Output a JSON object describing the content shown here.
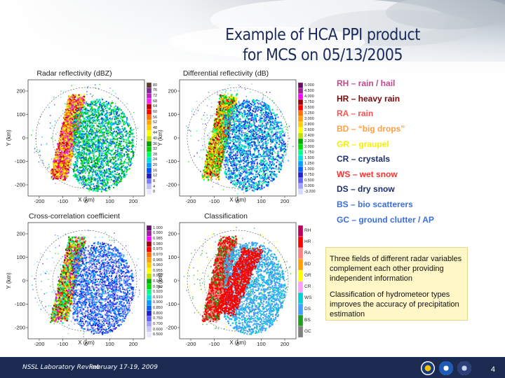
{
  "slide": {
    "title_line1": "Example of HCA PPI product",
    "title_line2": "for MCS on 05/13/2005"
  },
  "panels": [
    {
      "title": "Radar reflectivity (dBZ)",
      "scale": [
        "80",
        "76",
        "72",
        "68",
        "64",
        "60",
        "56",
        "52",
        "48",
        "44",
        "40",
        "36",
        "32",
        "28",
        "24",
        "20",
        "16",
        "12",
        "8",
        "4",
        "0"
      ],
      "colors": [
        "#5a3a2a",
        "#7a2a9a",
        "#c020c0",
        "#ff20ff",
        "#c00000",
        "#ff0000",
        "#ff7000",
        "#ffa500",
        "#ffd000",
        "#ffff00",
        "#c8e000",
        "#00a000",
        "#00d000",
        "#00ff60",
        "#00e0e0",
        "#00a0ff",
        "#0050ff",
        "#2020c0",
        "#7a7aff",
        "#c0c0ff",
        "#e8e8ff"
      ]
    },
    {
      "title": "Differential reflectivity (dB)",
      "scale": [
        "5.000",
        "4.500",
        "4.000",
        "3.750",
        "3.500",
        "3.250",
        "3.000",
        "2.800",
        "2.600",
        "2.400",
        "2.200",
        "2.000",
        "1.750",
        "1.500",
        "1.250",
        "1.000",
        "0.750",
        "0.500",
        "0.000",
        "-3.200"
      ],
      "colors": [
        "#6a0a6a",
        "#a020a0",
        "#ff00ff",
        "#a00000",
        "#ff0000",
        "#ff7000",
        "#ffa000",
        "#ffd000",
        "#ffff00",
        "#c0e000",
        "#00b000",
        "#00e000",
        "#00ff90",
        "#00e0e0",
        "#00a0ff",
        "#0060ff",
        "#2020d0",
        "#6060ff",
        "#a0a0ff",
        "#d8d8ff"
      ]
    },
    {
      "title": "Cross-correlation coefficient",
      "scale": [
        "1.000",
        "0.990",
        "0.985",
        "0.980",
        "0.975",
        "0.970",
        "0.965",
        "0.960",
        "0.955",
        "0.950",
        "0.940",
        "0.930",
        "0.920",
        "0.910",
        "0.900",
        "0.850",
        "0.800",
        "0.750",
        "0.700",
        "0.600",
        "0.500"
      ],
      "colors": [
        "#6a0a6a",
        "#a020a0",
        "#ff00ff",
        "#a00000",
        "#ff0000",
        "#ff7000",
        "#ffa000",
        "#ffd000",
        "#ffff00",
        "#c0e000",
        "#00b000",
        "#00e000",
        "#00ff90",
        "#00e0e0",
        "#00a0ff",
        "#0060ff",
        "#2020d0",
        "#6060ff",
        "#a0a0ff",
        "#c8c8ff",
        "#e8e8ff"
      ]
    },
    {
      "title": "Classification",
      "scale": [
        "RH",
        "HR",
        "RA",
        "BD",
        "GR",
        "CR",
        "WS",
        "DS",
        "BS",
        "GC"
      ],
      "colors": [
        "#c00060",
        "#ff0000",
        "#ff8080",
        "#ffa000",
        "#ffff00",
        "#ffa0ff",
        "#00d0d0",
        "#40a0ff",
        "#20a020",
        "#808080"
      ]
    }
  ],
  "axes": {
    "y_label": "Y (km)",
    "y_label_alt": "(km)",
    "x_label": "X (km)",
    "x_ticks": [
      "-200",
      "-100",
      "0",
      "100",
      "200"
    ],
    "y_ticks": [
      "200",
      "100",
      "0",
      "-100",
      "-200"
    ]
  },
  "legend": [
    {
      "code_text": "RH – rain / hail",
      "color": "#c04a8a"
    },
    {
      "code_text": "HR – heavy rain",
      "color": "#7a0a0a"
    },
    {
      "code_text": "RA – rain",
      "color": "#ff5050"
    },
    {
      "code_text": "BD – “big drops”",
      "color": "#ff9e40"
    },
    {
      "code_text": "GR – graupel",
      "color": "#f2f200"
    },
    {
      "code_text": "CR – crystals",
      "color": "#1c2f6e"
    },
    {
      "code_text": "WS – wet snow",
      "color": "#ff3030"
    },
    {
      "code_text": "DS – dry snow",
      "color": "#1c2f6e"
    },
    {
      "code_text": "BS – bio scatterers",
      "color": "#3b6fdc"
    },
    {
      "code_text": "GC – ground clutter / AP",
      "color": "#3b6fdc"
    }
  ],
  "notes": {
    "note1": "Three fields of different radar variables complement each other providing independent information",
    "note2": "Classification of hydrometeor types improves the accuracy of precipitation estimation"
  },
  "footer": {
    "org": "NSSL Laboratory Review",
    "date": "February 17-19, 2009",
    "page": "4"
  }
}
